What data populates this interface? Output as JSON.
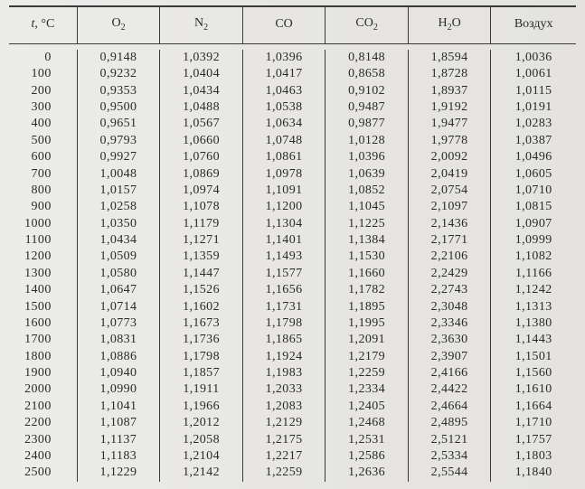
{
  "table": {
    "columns": [
      {
        "key": "t",
        "label_html": "<i>t</i>, °C"
      },
      {
        "key": "o2",
        "label_html": "O<span class=\"sub\">2</span>"
      },
      {
        "key": "n2",
        "label_html": "N<span class=\"sub\">2</span>"
      },
      {
        "key": "co",
        "label_html": "CO"
      },
      {
        "key": "co2",
        "label_html": "CO<span class=\"sub\">2</span>"
      },
      {
        "key": "h2o",
        "label_html": "H<span class=\"sub\">2</span>O"
      },
      {
        "key": "air",
        "label_html": "Воздух"
      }
    ],
    "col_widths_pct": [
      12,
      14.6,
      14.6,
      14.6,
      14.6,
      14.6,
      15
    ],
    "rows": [
      [
        "0",
        "0,9148",
        "1,0392",
        "1,0396",
        "0,8148",
        "1,8594",
        "1,0036"
      ],
      [
        "100",
        "0,9232",
        "1,0404",
        "1,0417",
        "0,8658",
        "1,8728",
        "1,0061"
      ],
      [
        "200",
        "0,9353",
        "1,0434",
        "1,0463",
        "0,9102",
        "1,8937",
        "1,0115"
      ],
      [
        "300",
        "0,9500",
        "1,0488",
        "1,0538",
        "0,9487",
        "1,9192",
        "1,0191"
      ],
      [
        "400",
        "0,9651",
        "1,0567",
        "1,0634",
        "0,9877",
        "1,9477",
        "1,0283"
      ],
      [
        "500",
        "0,9793",
        "1,0660",
        "1,0748",
        "1,0128",
        "1,9778",
        "1,0387"
      ],
      [
        "600",
        "0,9927",
        "1,0760",
        "1,0861",
        "1,0396",
        "2,0092",
        "1,0496"
      ],
      [
        "700",
        "1,0048",
        "1,0869",
        "1,0978",
        "1,0639",
        "2,0419",
        "1,0605"
      ],
      [
        "800",
        "1,0157",
        "1,0974",
        "1,1091",
        "1,0852",
        "2,0754",
        "1,0710"
      ],
      [
        "900",
        "1,0258",
        "1,1078",
        "1,1200",
        "1,1045",
        "2,1097",
        "1,0815"
      ],
      [
        "1000",
        "1,0350",
        "1,1179",
        "1,1304",
        "1,1225",
        "2,1436",
        "1,0907"
      ],
      [
        "1100",
        "1,0434",
        "1,1271",
        "1,1401",
        "1,1384",
        "2,1771",
        "1,0999"
      ],
      [
        "1200",
        "1,0509",
        "1,1359",
        "1,1493",
        "1,1530",
        "2,2106",
        "1,1082"
      ],
      [
        "1300",
        "1,0580",
        "1,1447",
        "1,1577",
        "1,1660",
        "2,2429",
        "1,1166"
      ],
      [
        "1400",
        "1,0647",
        "1,1526",
        "1,1656",
        "1,1782",
        "2,2743",
        "1,1242"
      ],
      [
        "1500",
        "1,0714",
        "1,1602",
        "1,1731",
        "1,1895",
        "2,3048",
        "1,1313"
      ],
      [
        "1600",
        "1,0773",
        "1,1673",
        "1,1798",
        "1,1995",
        "2,3346",
        "1,1380"
      ],
      [
        "1700",
        "1,0831",
        "1,1736",
        "1,1865",
        "1,2091",
        "2,3630",
        "1,1443"
      ],
      [
        "1800",
        "1,0886",
        "1,1798",
        "1,1924",
        "1,2179",
        "2,3907",
        "1,1501"
      ],
      [
        "1900",
        "1,0940",
        "1,1857",
        "1,1983",
        "1,2259",
        "2,4166",
        "1,1560"
      ],
      [
        "2000",
        "1,0990",
        "1,1911",
        "1,2033",
        "1,2334",
        "2,4422",
        "1,1610"
      ],
      [
        "2100",
        "1,1041",
        "1,1966",
        "1,2083",
        "1,2405",
        "2,4664",
        "1,1664"
      ],
      [
        "2200",
        "1,1087",
        "1,2012",
        "1,2129",
        "1,2468",
        "2,4895",
        "1,1710"
      ],
      [
        "2300",
        "1,1137",
        "1,2058",
        "1,2175",
        "1,2531",
        "2,5121",
        "1,1757"
      ],
      [
        "2400",
        "1,1183",
        "1,2104",
        "1,2217",
        "1,2586",
        "2,5334",
        "1,1803"
      ],
      [
        "2500",
        "1,1229",
        "1,2142",
        "1,2259",
        "1,2636",
        "2,5544",
        "1,1840"
      ]
    ],
    "style": {
      "background_color": "#e9e8e4",
      "rule_color": "#3a3a3a",
      "font_family": "Times New Roman",
      "header_fontsize_pt": 11,
      "body_fontsize_pt": 11,
      "text_color": "#2a2a2a"
    }
  }
}
